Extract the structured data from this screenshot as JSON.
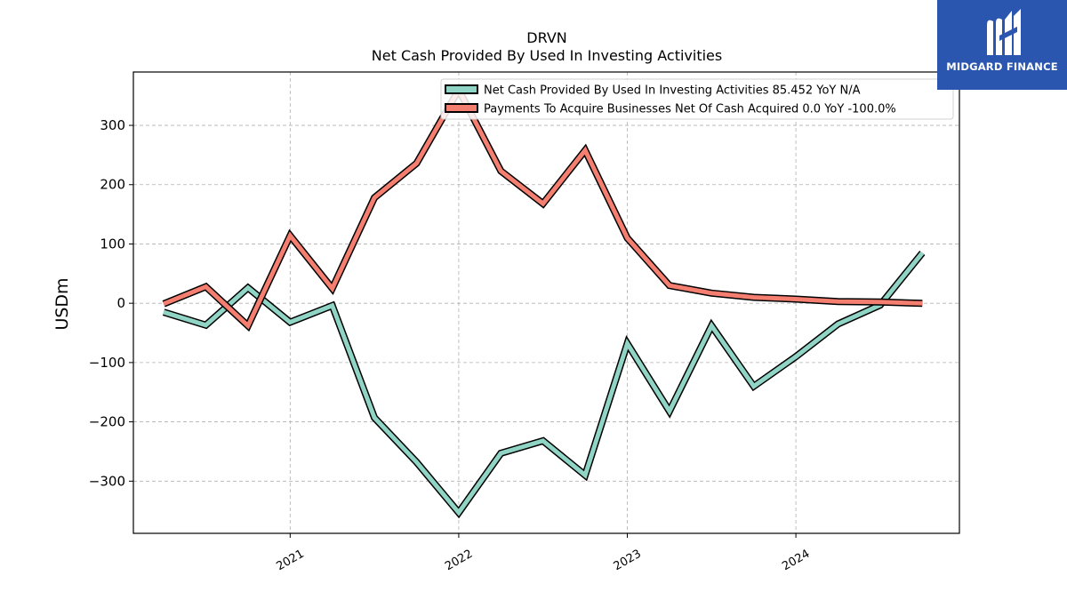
{
  "chart_data": {
    "type": "line",
    "title": "DRVN",
    "subtitle": "Net Cash Provided By Used In Investing Activities",
    "ylabel": "USDm",
    "xlabel": "",
    "ylim": [
      -388,
      390
    ],
    "xlim": [
      2020.07,
      2024.97
    ],
    "yticks": [
      -300,
      -200,
      -100,
      0,
      100,
      200,
      300
    ],
    "ytick_labels": [
      "−300",
      "−200",
      "−100",
      "0",
      "100",
      "200",
      "300"
    ],
    "xticks": [
      2021,
      2022,
      2023,
      2024
    ],
    "xtick_labels": [
      "2021",
      "2022",
      "2023",
      "2024"
    ],
    "grid": true,
    "legend_position": "top-right",
    "x": [
      2020.25,
      2020.5,
      2020.75,
      2021.0,
      2021.25,
      2021.5,
      2021.75,
      2022.0,
      2022.25,
      2022.5,
      2022.75,
      2023.0,
      2023.25,
      2023.5,
      2023.75,
      2024.0,
      2024.25,
      2024.5,
      2024.75
    ],
    "series": [
      {
        "name": "Net Cash Provided By Used In Investing Activities",
        "legend_label": "Net Cash Provided By Used In Investing Activities  85.452 YoY N/A",
        "color": "#8fd4c4",
        "values": [
          -15,
          -37,
          26,
          -32,
          -4,
          -193,
          -268,
          -353,
          -253,
          -232,
          -290,
          -68,
          -182,
          -38,
          -140,
          -90,
          -35,
          -3,
          85
        ]
      },
      {
        "name": "Payments To Acquire Businesses Net Of Cash Acquired",
        "legend_label": "Payments To Acquire Businesses Net Of Cash Acquired  0.0 YoY -100.0%",
        "color": "#f47f70",
        "values": [
          -1,
          28,
          -38,
          114,
          25,
          178,
          236,
          360,
          223,
          168,
          258,
          110,
          30,
          17,
          10,
          7,
          3,
          2,
          0
        ]
      }
    ]
  },
  "logo": {
    "text": "MIDGARD FINANCE",
    "icon": "midgard-m-logo",
    "color": "#2a56b0"
  }
}
